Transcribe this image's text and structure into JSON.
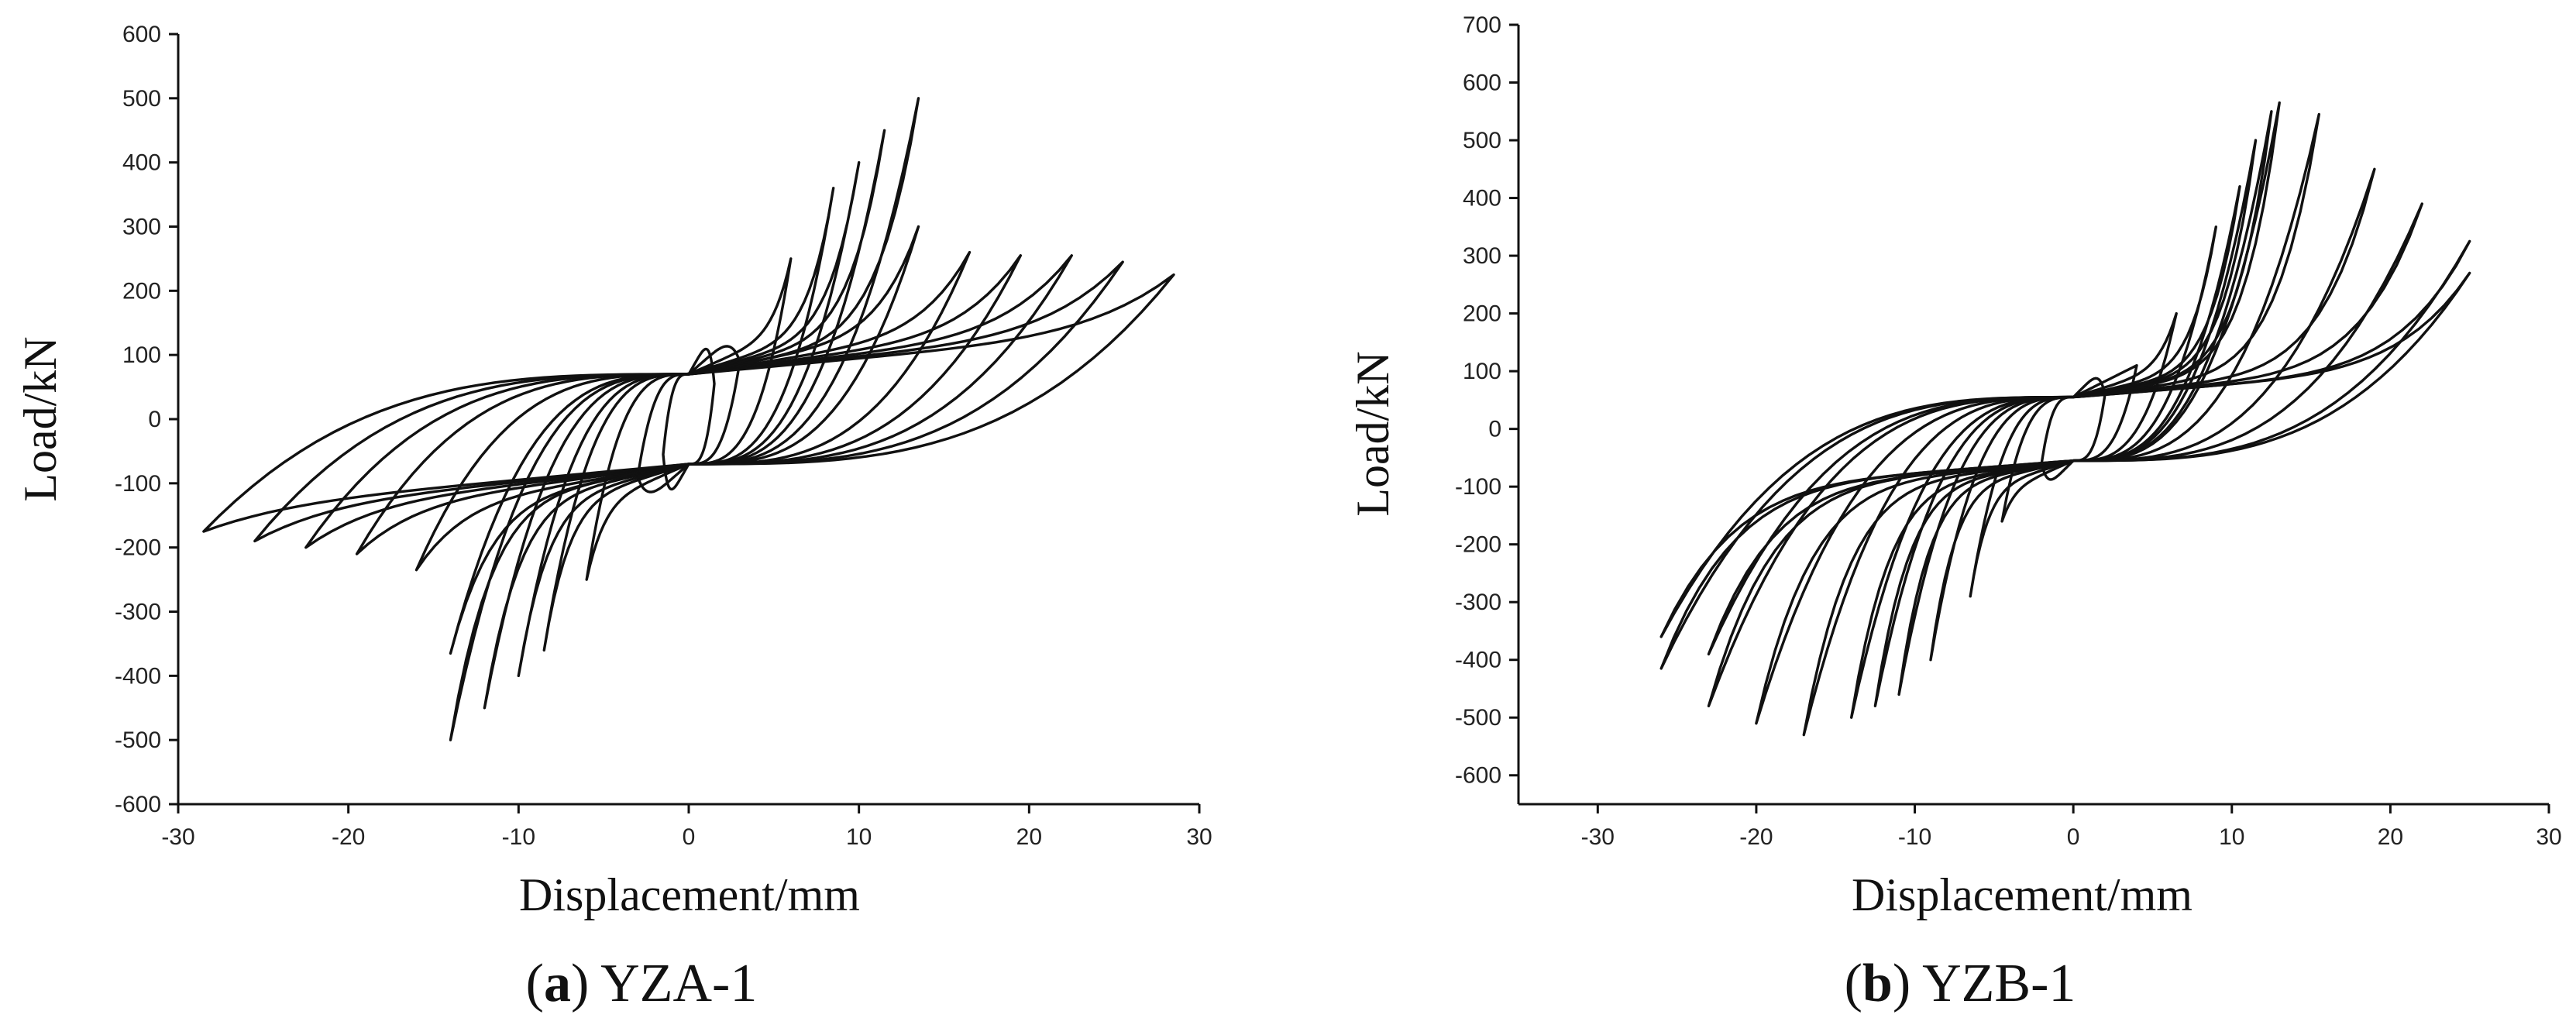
{
  "panels": [
    {
      "caption_letter": "a",
      "caption_name": "YZA-1",
      "chart_data": {
        "type": "line",
        "title": "",
        "xlabel": "Displacement/mm",
        "ylabel": "Load/kN",
        "xlim": [
          -30,
          30
        ],
        "ylim": [
          -600,
          600
        ],
        "xticks": [
          -30,
          -20,
          -10,
          0,
          10,
          20,
          30
        ],
        "yticks": [
          -600,
          -500,
          -400,
          -300,
          -200,
          -100,
          0,
          100,
          200,
          300,
          400,
          500,
          600
        ],
        "grid": false,
        "legend": "none",
        "loop_shape": {
          "pinch": 0.3,
          "zero_load": 70,
          "hardening": 70
        },
        "loops": [
          {
            "dmax": 1.5,
            "pmax": 55,
            "dmin": -1.5,
            "pmin": -55
          },
          {
            "dmax": 3.0,
            "pmax": 90,
            "dmin": -3.0,
            "pmin": -90
          },
          {
            "dmax": 6.0,
            "pmax": 250,
            "dmin": -6.0,
            "pmin": -250
          },
          {
            "dmax": 8.5,
            "pmax": 360,
            "dmin": -8.5,
            "pmin": -360
          },
          {
            "dmax": 10.0,
            "pmax": 400,
            "dmin": -10.0,
            "pmin": -400
          },
          {
            "dmax": 11.5,
            "pmax": 450,
            "dmin": -12.0,
            "pmin": -450
          },
          {
            "dmax": 13.5,
            "pmax": 500,
            "dmin": -14.0,
            "pmin": -500
          },
          {
            "dmax": 13.5,
            "pmax": 300,
            "dmin": -14.0,
            "pmin": -365
          },
          {
            "dmax": 16.5,
            "pmax": 260,
            "dmin": -16.0,
            "pmin": -235
          },
          {
            "dmax": 19.5,
            "pmax": 255,
            "dmin": -19.5,
            "pmin": -210
          },
          {
            "dmax": 22.5,
            "pmax": 255,
            "dmin": -22.5,
            "pmin": -200
          },
          {
            "dmax": 25.5,
            "pmax": 245,
            "dmin": -25.5,
            "pmin": -190
          },
          {
            "dmax": 28.5,
            "pmax": 225,
            "dmin": -28.5,
            "pmin": -175
          }
        ]
      }
    },
    {
      "caption_letter": "b",
      "caption_name": "YZB-1",
      "chart_data": {
        "type": "line",
        "title": "",
        "xlabel": "Displacement/mm",
        "ylabel": "Load/kN",
        "xlim": [
          -35,
          30
        ],
        "ylim": [
          -650,
          700
        ],
        "xticks": [
          -30,
          -20,
          -10,
          0,
          10,
          20,
          30
        ],
        "yticks": [
          -600,
          -500,
          -400,
          -300,
          -200,
          -100,
          0,
          100,
          200,
          300,
          400,
          500,
          600,
          700
        ],
        "grid": false,
        "legend": "none",
        "loop_shape": {
          "pinch": 0.3,
          "zero_load": 55,
          "hardening": 55
        },
        "loops": [
          {
            "dmax": 2.0,
            "pmax": 60,
            "dmin": -2.0,
            "pmin": -60
          },
          {
            "dmax": 4.0,
            "pmax": 110,
            "dmin": -4.5,
            "pmin": -160
          },
          {
            "dmax": 6.5,
            "pmax": 200,
            "dmin": -6.5,
            "pmin": -290
          },
          {
            "dmax": 9.0,
            "pmax": 350,
            "dmin": -9.0,
            "pmin": -400
          },
          {
            "dmax": 10.5,
            "pmax": 420,
            "dmin": -11.0,
            "pmin": -460
          },
          {
            "dmax": 11.5,
            "pmax": 500,
            "dmin": -12.5,
            "pmin": -480
          },
          {
            "dmax": 12.5,
            "pmax": 550,
            "dmin": -14.0,
            "pmin": -500
          },
          {
            "dmax": 13.0,
            "pmax": 565,
            "dmin": -17.0,
            "pmin": -530
          },
          {
            "dmax": 15.5,
            "pmax": 545,
            "dmin": -20.0,
            "pmin": -510
          },
          {
            "dmax": 19.0,
            "pmax": 450,
            "dmin": -23.0,
            "pmin": -480
          },
          {
            "dmax": 22.0,
            "pmax": 390,
            "dmin": -26.0,
            "pmin": -415
          },
          {
            "dmax": 25.0,
            "pmax": 325,
            "dmin": -26.0,
            "pmin": -360
          },
          {
            "dmax": 25.0,
            "pmax": 270,
            "dmin": -23.0,
            "pmin": -390
          }
        ]
      }
    }
  ]
}
